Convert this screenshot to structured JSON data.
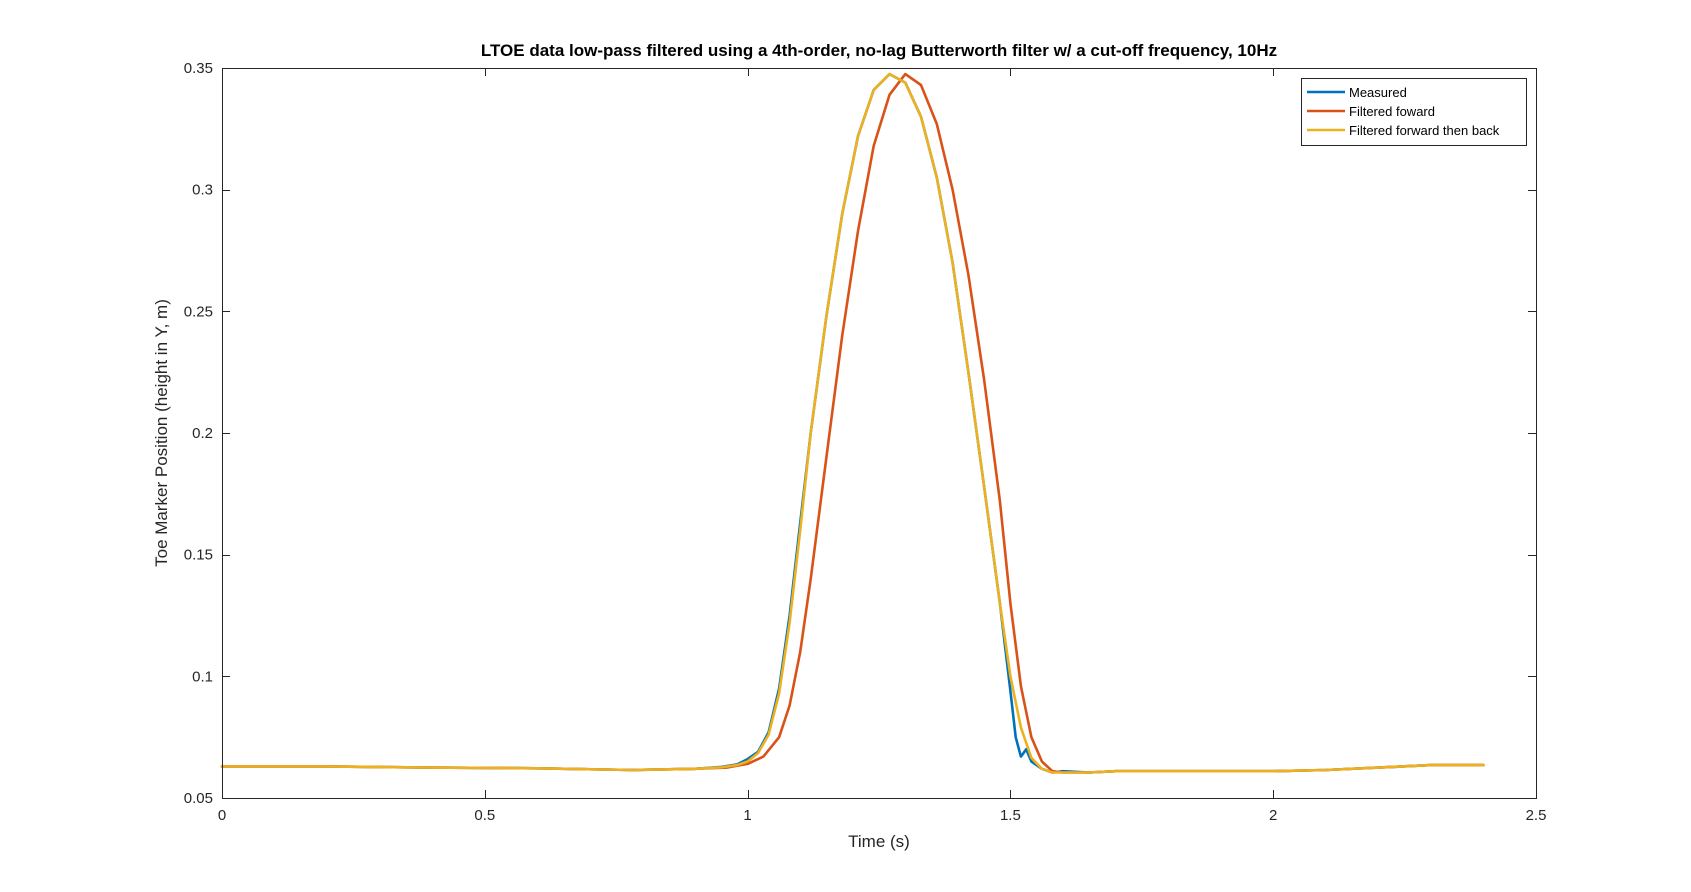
{
  "chart_data": {
    "type": "line",
    "title": "LTOE data low-pass filtered using a 4th-order, no-lag Butterworth filter w/ a cut-off frequency, 10Hz",
    "xlabel": "Time (s)",
    "ylabel": "Toe Marker Position (height in Y, m)",
    "xlim": [
      0,
      2.5
    ],
    "ylim": [
      0.05,
      0.35
    ],
    "xticks": [
      0,
      0.5,
      1,
      1.5,
      2,
      2.5
    ],
    "xtick_labels": [
      "0",
      "0.5",
      "1",
      "1.5",
      "2",
      "2.5"
    ],
    "yticks": [
      0.05,
      0.1,
      0.15,
      0.2,
      0.25,
      0.3,
      0.35
    ],
    "ytick_labels": [
      "0.05",
      "0.1",
      "0.15",
      "0.2",
      "0.25",
      "0.3",
      "0.35"
    ],
    "grid": false,
    "legend_position": "top-right",
    "series": [
      {
        "name": "Measured",
        "color": "#0072BD",
        "x": [
          0,
          0.2,
          0.4,
          0.6,
          0.78,
          0.9,
          0.95,
          0.98,
          1.0,
          1.02,
          1.04,
          1.06,
          1.08,
          1.1,
          1.12,
          1.15,
          1.18,
          1.21,
          1.24,
          1.27,
          1.3,
          1.33,
          1.36,
          1.39,
          1.42,
          1.45,
          1.48,
          1.5,
          1.51,
          1.52,
          1.53,
          1.54,
          1.56,
          1.58,
          1.6,
          1.65,
          1.7,
          1.8,
          1.9,
          2.0,
          2.1,
          2.2,
          2.3,
          2.4
        ],
        "y": [
          0.063,
          0.063,
          0.0625,
          0.0622,
          0.0615,
          0.062,
          0.0628,
          0.0638,
          0.066,
          0.069,
          0.077,
          0.095,
          0.125,
          0.163,
          0.2,
          0.248,
          0.29,
          0.322,
          0.341,
          0.3475,
          0.344,
          0.33,
          0.305,
          0.27,
          0.225,
          0.178,
          0.13,
          0.094,
          0.075,
          0.067,
          0.07,
          0.065,
          0.062,
          0.0605,
          0.061,
          0.0605,
          0.061,
          0.061,
          0.061,
          0.061,
          0.0615,
          0.0625,
          0.0635,
          0.0635
        ]
      },
      {
        "name": "Filtered foward",
        "color": "#D95319",
        "x": [
          0,
          0.2,
          0.4,
          0.6,
          0.78,
          0.9,
          0.96,
          1.0,
          1.03,
          1.06,
          1.08,
          1.1,
          1.12,
          1.15,
          1.18,
          1.21,
          1.24,
          1.27,
          1.3,
          1.33,
          1.36,
          1.39,
          1.42,
          1.45,
          1.48,
          1.5,
          1.52,
          1.54,
          1.56,
          1.58,
          1.6,
          1.65,
          1.7,
          1.8,
          1.9,
          2.0,
          2.1,
          2.2,
          2.3,
          2.4
        ],
        "y": [
          0.063,
          0.063,
          0.0625,
          0.0622,
          0.0615,
          0.062,
          0.0625,
          0.064,
          0.067,
          0.075,
          0.088,
          0.11,
          0.14,
          0.19,
          0.24,
          0.283,
          0.318,
          0.339,
          0.3475,
          0.343,
          0.327,
          0.3,
          0.265,
          0.222,
          0.172,
          0.13,
          0.096,
          0.075,
          0.065,
          0.061,
          0.0605,
          0.0605,
          0.061,
          0.061,
          0.061,
          0.061,
          0.0615,
          0.0625,
          0.0635,
          0.0635
        ]
      },
      {
        "name": "Filtered forward then back",
        "color": "#EDB120",
        "x": [
          0,
          0.2,
          0.4,
          0.6,
          0.78,
          0.9,
          0.95,
          0.98,
          1.0,
          1.02,
          1.04,
          1.06,
          1.08,
          1.1,
          1.12,
          1.15,
          1.18,
          1.21,
          1.24,
          1.27,
          1.3,
          1.33,
          1.36,
          1.39,
          1.42,
          1.45,
          1.48,
          1.5,
          1.52,
          1.54,
          1.56,
          1.58,
          1.6,
          1.65,
          1.7,
          1.8,
          1.9,
          2.0,
          2.1,
          2.2,
          2.3,
          2.4
        ],
        "y": [
          0.063,
          0.063,
          0.0625,
          0.0622,
          0.0615,
          0.062,
          0.0626,
          0.0635,
          0.065,
          0.0685,
          0.076,
          0.093,
          0.122,
          0.16,
          0.2,
          0.248,
          0.29,
          0.322,
          0.341,
          0.3475,
          0.344,
          0.33,
          0.305,
          0.27,
          0.225,
          0.178,
          0.13,
          0.1,
          0.079,
          0.0665,
          0.062,
          0.0605,
          0.0605,
          0.0605,
          0.061,
          0.061,
          0.061,
          0.061,
          0.0615,
          0.0625,
          0.0635,
          0.0635
        ]
      }
    ]
  }
}
